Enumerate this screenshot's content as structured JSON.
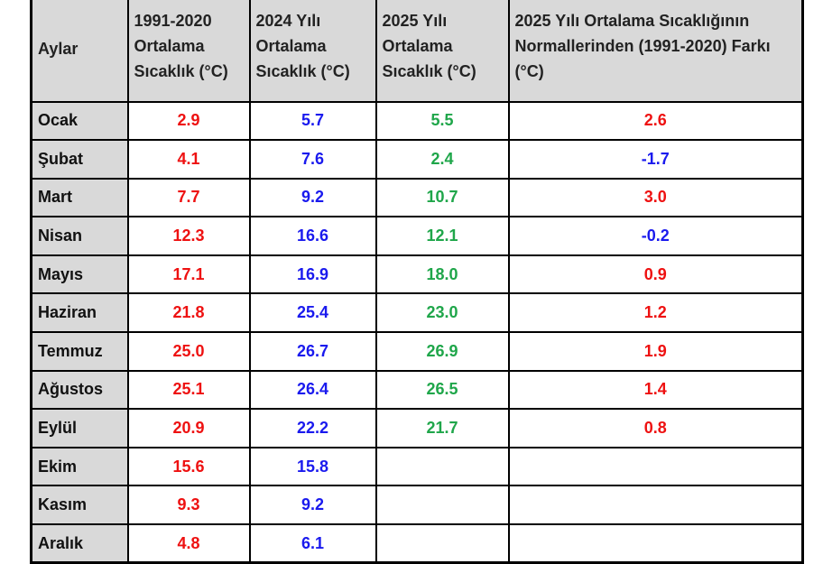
{
  "table": {
    "headers": [
      "Aylar",
      "1991-2020 Ortalama Sıcaklık (°C)",
      "2024 Yılı Ortalama Sıcaklık (°C)",
      "2025 Yılı Ortalama Sıcaklık (°C)",
      "2025 Yılı Ortalama Sıcaklığının Normallerinden (1991-2020) Farkı (°C)"
    ],
    "rows": [
      [
        "Ocak",
        "2.9",
        "5.7",
        "5.5",
        "2.6"
      ],
      [
        "Şubat",
        "4.1",
        "7.6",
        "2.4",
        "-1.7"
      ],
      [
        "Mart",
        "7.7",
        "9.2",
        "10.7",
        "3.0"
      ],
      [
        "Nisan",
        "12.3",
        "16.6",
        "12.1",
        "-0.2"
      ],
      [
        "Mayıs",
        "17.1",
        "16.9",
        "18.0",
        "0.9"
      ],
      [
        "Haziran",
        "21.8",
        "25.4",
        "23.0",
        "1.2"
      ],
      [
        "Temmuz",
        "25.0",
        "26.7",
        "26.9",
        "1.9"
      ],
      [
        "Ağustos",
        "25.1",
        "26.4",
        "26.5",
        "1.4"
      ],
      [
        "Eylül",
        "20.9",
        "22.2",
        "21.7",
        "0.8"
      ],
      [
        "Ekim",
        "15.6",
        "15.8"
      ],
      [
        "Kasım",
        "9.3",
        "9.2"
      ],
      [
        "Aralık",
        "4.8",
        "6.1"
      ]
    ]
  }
}
